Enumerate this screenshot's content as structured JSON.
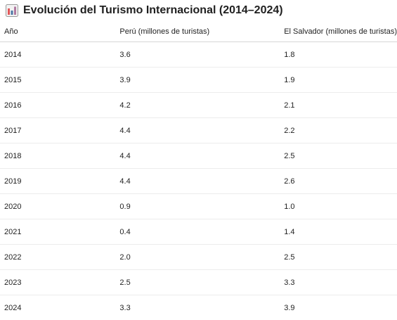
{
  "title": "Evolución del Turismo Internacional (2014–2024)",
  "icon": "bar-chart-icon",
  "colors": {
    "icon_bars": [
      "#e15759",
      "#4e79a7",
      "#b07aa1"
    ]
  },
  "chart_data": {
    "type": "table",
    "title": "Evolución del Turismo Internacional (2014–2024)",
    "columns": [
      "Año",
      "Perú (millones de turistas)",
      "El Salvador (millones de turistas)"
    ],
    "rows": [
      [
        "2014",
        "3.6",
        "1.8"
      ],
      [
        "2015",
        "3.9",
        "1.9"
      ],
      [
        "2016",
        "4.2",
        "2.1"
      ],
      [
        "2017",
        "4.4",
        "2.2"
      ],
      [
        "2018",
        "4.4",
        "2.5"
      ],
      [
        "2019",
        "4.4",
        "2.6"
      ],
      [
        "2020",
        "0.9",
        "1.0"
      ],
      [
        "2021",
        "0.4",
        "1.4"
      ],
      [
        "2022",
        "2.0",
        "2.5"
      ],
      [
        "2023",
        "2.5",
        "3.3"
      ],
      [
        "2024",
        "3.3",
        "3.9"
      ]
    ],
    "series": [
      {
        "name": "Perú (millones de turistas)",
        "x": [
          2014,
          2015,
          2016,
          2017,
          2018,
          2019,
          2020,
          2021,
          2022,
          2023,
          2024
        ],
        "values": [
          3.6,
          3.9,
          4.2,
          4.4,
          4.4,
          4.4,
          0.9,
          0.4,
          2.0,
          2.5,
          3.3
        ]
      },
      {
        "name": "El Salvador (millones de turistas)",
        "x": [
          2014,
          2015,
          2016,
          2017,
          2018,
          2019,
          2020,
          2021,
          2022,
          2023,
          2024
        ],
        "values": [
          1.8,
          1.9,
          2.1,
          2.2,
          2.5,
          2.6,
          1.0,
          1.4,
          2.5,
          3.3,
          3.9
        ]
      }
    ]
  }
}
